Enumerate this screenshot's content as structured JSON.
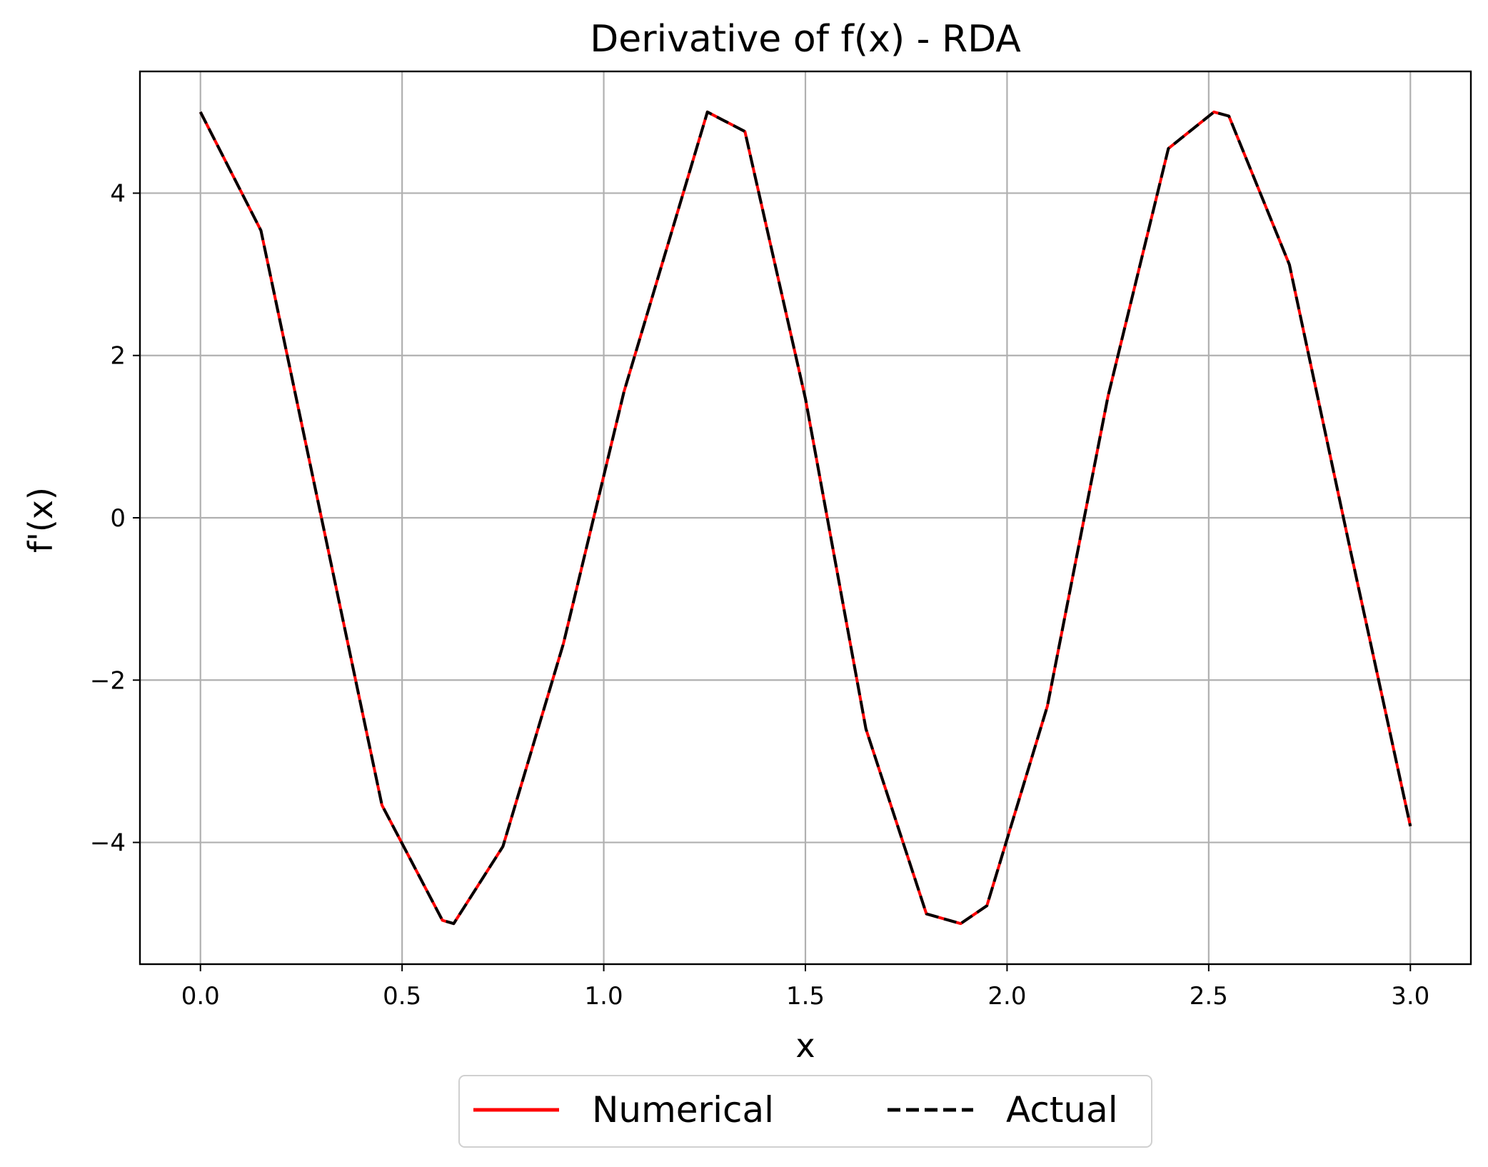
{
  "chart_data": {
    "type": "line",
    "title": "Derivative of f(x) - RDA",
    "xlabel": "x",
    "ylabel": "f'(x)",
    "xlim": [
      -0.15,
      3.15
    ],
    "ylim": [
      -5.5,
      5.5
    ],
    "xticks": [
      0.0,
      0.5,
      1.0,
      1.5,
      2.0,
      2.5,
      3.0
    ],
    "xtick_labels": [
      "0.0",
      "0.5",
      "1.0",
      "1.5",
      "2.0",
      "2.5",
      "3.0"
    ],
    "yticks": [
      -4,
      -2,
      0,
      2,
      4
    ],
    "ytick_labels": [
      "−4",
      "−2",
      "0",
      "2",
      "4"
    ],
    "grid": true,
    "legend_position": "bottom-center",
    "x": [
      0.0,
      0.15,
      0.3,
      0.45,
      0.6,
      0.628,
      0.75,
      0.9,
      1.05,
      1.2,
      1.257,
      1.35,
      1.5,
      1.65,
      1.8,
      1.885,
      1.95,
      2.1,
      2.25,
      2.4,
      2.513,
      2.55,
      2.7,
      2.85,
      3.0
    ],
    "series": [
      {
        "name": "Numerical",
        "color": "#ff0000",
        "style": "solid",
        "values": [
          5.0,
          3.54,
          0.0,
          -3.54,
          -4.96,
          -5.0,
          -4.05,
          -1.55,
          1.55,
          4.05,
          5.0,
          4.76,
          1.47,
          -2.6,
          -4.88,
          -5.0,
          -4.78,
          -2.32,
          1.49,
          4.55,
          5.0,
          4.95,
          3.12,
          -0.37,
          -3.8
        ]
      },
      {
        "name": "Actual",
        "color": "#000000",
        "style": "dashed",
        "values": [
          5.0,
          3.54,
          0.0,
          -3.54,
          -4.96,
          -5.0,
          -4.05,
          -1.55,
          1.55,
          4.05,
          5.0,
          4.76,
          1.47,
          -2.6,
          -4.88,
          -5.0,
          -4.78,
          -2.32,
          1.49,
          4.55,
          5.0,
          4.95,
          3.12,
          -0.37,
          -3.8
        ]
      }
    ]
  }
}
